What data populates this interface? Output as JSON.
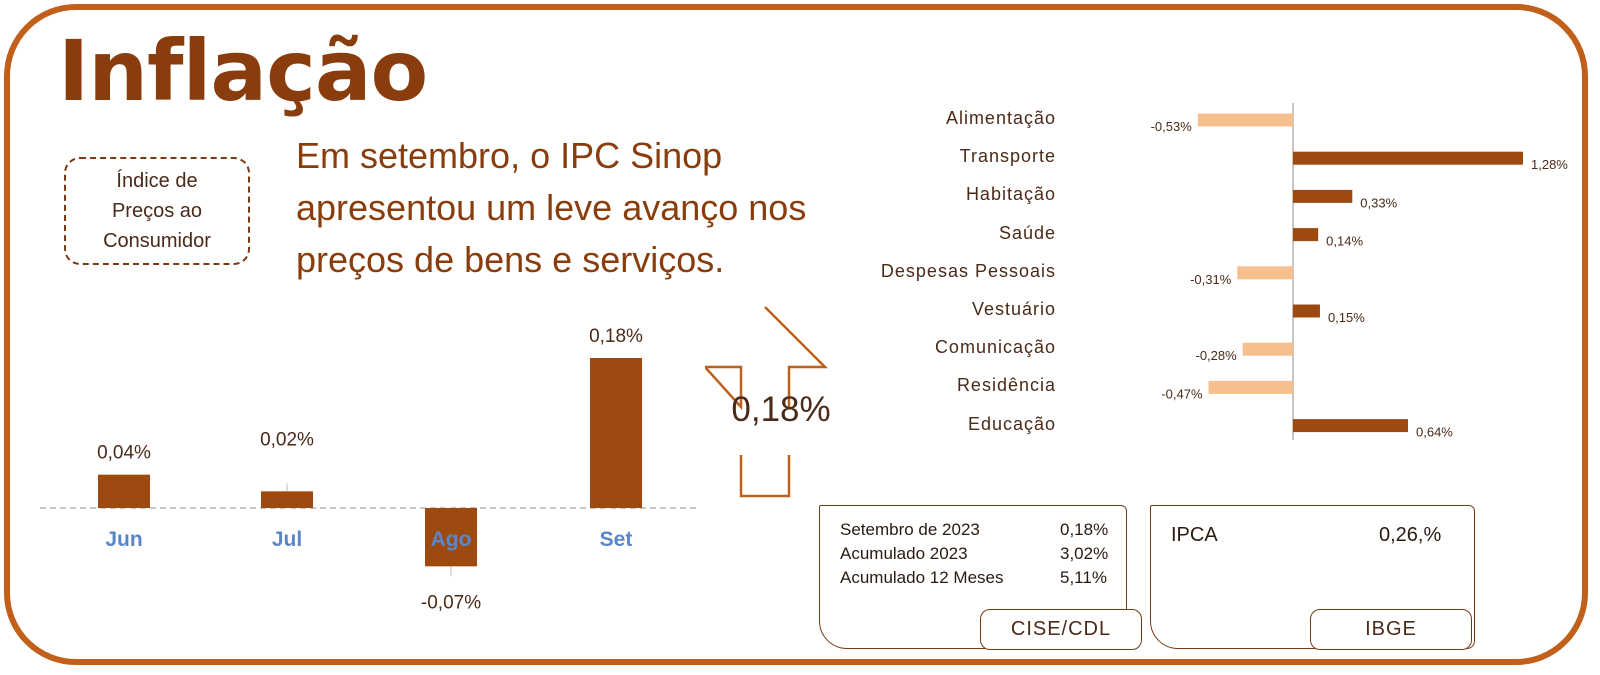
{
  "header": {
    "title": "Inflação"
  },
  "badge": {
    "text": "Índice de\nPreços ao\nConsumidor"
  },
  "description": "Em setembro, o IPC Sinop\napresentou um leve avanço nos\npreços de bens e serviços.",
  "arrow": {
    "value": "0,18%",
    "direction": "up",
    "icon": "up-arrow-icon"
  },
  "colors": {
    "accent": "#c0601a",
    "bar_dark": "#9c4a10",
    "bar_light": "#f6c08e",
    "month_label": "#5a86c8"
  },
  "chart_data": [
    {
      "type": "bar",
      "categories": [
        "Jun",
        "Jul",
        "Ago",
        "Set"
      ],
      "values": [
        0.04,
        0.02,
        -0.07,
        0.18
      ],
      "data_labels": [
        "0,04%",
        "0,02%",
        "-0,07%",
        "0,18%"
      ],
      "title": "",
      "xlabel": "",
      "ylabel": "",
      "ylim": [
        -0.12,
        0.2
      ]
    },
    {
      "type": "bar",
      "orientation": "horizontal",
      "categories": [
        "Alimentação",
        "Transporte",
        "Habitação",
        "Saúde",
        "Despesas Pessoais",
        "Vestuário",
        "Comunicação",
        "Residência",
        "Educação"
      ],
      "values": [
        -0.53,
        1.28,
        0.33,
        0.14,
        -0.31,
        0.15,
        -0.28,
        -0.47,
        0.64
      ],
      "data_labels": [
        "-0,53%",
        "1,28%",
        "0,33%",
        "0,14%",
        "-0,31%",
        "0,15%",
        "-0,28%",
        "-0,47%",
        "0,64%"
      ],
      "title": "",
      "xlabel": "",
      "ylabel": "",
      "xlim": [
        -0.6,
        1.3
      ]
    }
  ],
  "cise_box": {
    "rows": [
      {
        "label": "Setembro  de 2023",
        "value": "0,18%"
      },
      {
        "label": "Acumulado 2023",
        "value": "3,02%"
      },
      {
        "label": "Acumulado 12 Meses",
        "value": "5,11%"
      }
    ],
    "source": "CISE/CDL"
  },
  "ibge_box": {
    "label": "IPCA",
    "value": "0,26,%",
    "source": "IBGE"
  }
}
